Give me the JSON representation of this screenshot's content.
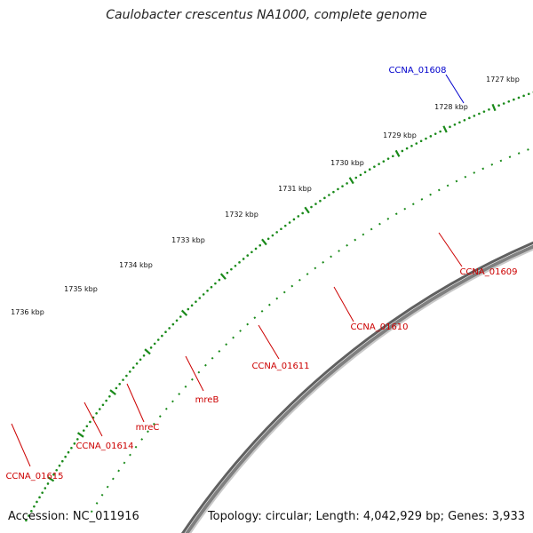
{
  "header": {
    "title": "Caulobacter crescentus NA1000, complete genome"
  },
  "footer": {
    "accession": "Accession: NC_011916",
    "topology": "Topology: circular; Length: 4,042,929 bp; Genes: 3,933"
  },
  "map": {
    "scale_unit": "kbp",
    "scale_labels": [
      "1727 kbp",
      "1728 kbp",
      "1729 kbp",
      "1730 kbp",
      "1731 kbp",
      "1732 kbp",
      "1733 kbp",
      "1734 kbp",
      "1735 kbp",
      "1736 kbp"
    ],
    "colors": {
      "backbone": "#808080",
      "scale": "#1a8a1a",
      "gene_red": "#ff0000",
      "label_red": "#cc0000",
      "label_blue": "#0000cc"
    },
    "gene_labels": [
      {
        "text": "CCNA_01608",
        "color": "#0000cc"
      },
      {
        "text": "CCNA_01609",
        "color": "#cc0000"
      },
      {
        "text": "CCNA_01610",
        "color": "#cc0000"
      },
      {
        "text": "CCNA_01611",
        "color": "#cc0000"
      },
      {
        "text": "mreB",
        "color": "#cc0000"
      },
      {
        "text": "mreC",
        "color": "#cc0000"
      },
      {
        "text": "CCNA_01614",
        "color": "#cc0000"
      },
      {
        "text": "CCNA_01615",
        "color": "#cc0000"
      }
    ]
  }
}
